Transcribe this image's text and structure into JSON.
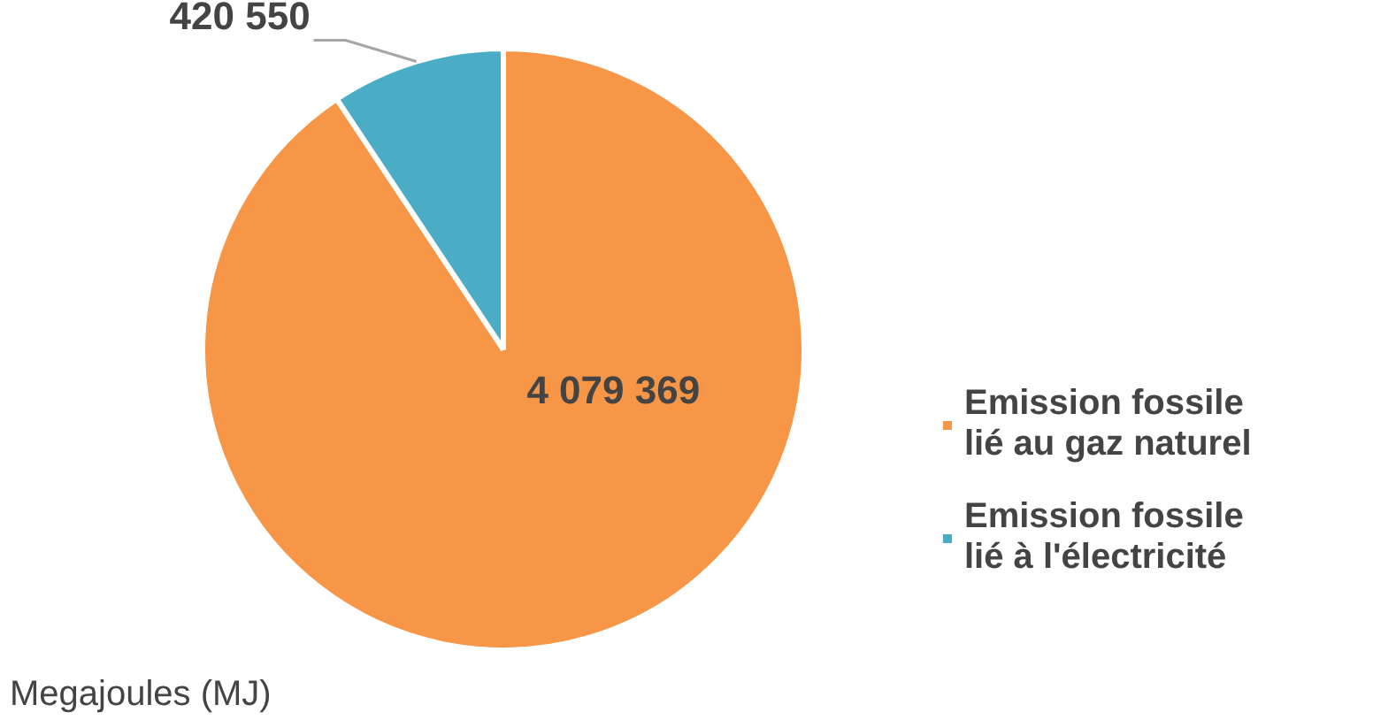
{
  "chart_data": {
    "type": "pie",
    "categories": [
      "Emission fossile lié au gaz naturel",
      "Emission fossile lié à l'électricité"
    ],
    "values": [
      4079369,
      420550
    ],
    "colors": [
      "#f79646",
      "#4bacc6"
    ],
    "data_labels": true,
    "legend": "right",
    "annotations": [
      "Megajoules (MJ)"
    ]
  }
}
